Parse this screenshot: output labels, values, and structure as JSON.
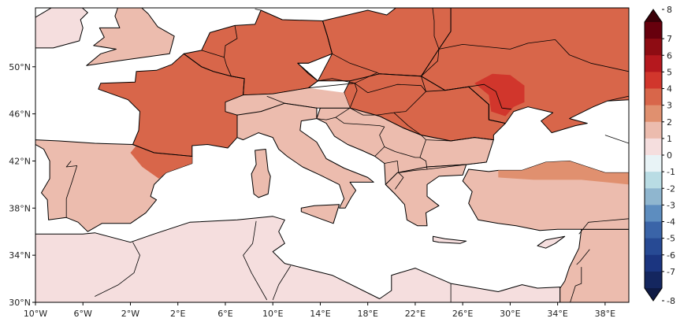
{
  "map": {
    "lon_range": [
      -10,
      40
    ],
    "lat_range": [
      30,
      55
    ],
    "x_ticks": [
      "10°W",
      "6°W",
      "2°W",
      "2°E",
      "6°E",
      "10°E",
      "14°E",
      "18°E",
      "22°E",
      "26°E",
      "30°E",
      "34°E",
      "38°E"
    ],
    "y_ticks": [
      "30°N",
      "34°N",
      "38°N",
      "42°N",
      "46°N",
      "50°N"
    ]
  },
  "colorbar": {
    "labels": [
      "8",
      "7",
      "6",
      "5",
      "4",
      "3",
      "2",
      "1",
      "0",
      "-1",
      "-2",
      "-3",
      "-4",
      "-5",
      "-6",
      "-7",
      "-8"
    ],
    "colors": [
      "#67000d",
      "#8e0c13",
      "#b5181e",
      "#d1362c",
      "#d8664a",
      "#e0906f",
      "#ecbcae",
      "#f5dede",
      "#fbf2f2",
      "#e8f3f6",
      "#b9dce4",
      "#8fb6cf",
      "#5d8dbf",
      "#3a64a8",
      "#274a94",
      "#1b3580",
      "#14265f"
    ],
    "extend_colors": {
      "top": "#3a0008",
      "bottom": "#0e1a44"
    }
  },
  "palette": {
    "sea": "#ffffff",
    "coast_stroke": "#000000",
    "border_stroke": "#000000",
    "land_base": "#f4dcdc"
  },
  "regions": [
    {
      "name": "britain",
      "value": 1.2
    },
    {
      "name": "ireland",
      "value": 1.0
    },
    {
      "name": "france",
      "value": 3.3
    },
    {
      "name": "iberia",
      "value": 1.2
    },
    {
      "name": "ne-spain",
      "value": 3.2
    },
    {
      "name": "germany-benelux",
      "value": 3.4
    },
    {
      "name": "poland-baltic",
      "value": 3.6
    },
    {
      "name": "ukraine-russia",
      "value": 3.8
    },
    {
      "name": "central-ukraine",
      "value": 4.5
    },
    {
      "name": "hungary-romania",
      "value": 3.1
    },
    {
      "name": "alps",
      "value": 1.5
    },
    {
      "name": "italy",
      "value": 1.3
    },
    {
      "name": "balkans",
      "value": 1.4
    },
    {
      "name": "greece",
      "value": 1.1
    },
    {
      "name": "turkey",
      "value": 1.4
    },
    {
      "name": "north-turkey",
      "value": 2.6
    },
    {
      "name": "north-africa",
      "value": 1.0
    },
    {
      "name": "levant",
      "value": 1.2
    },
    {
      "name": "corsica-sardinia",
      "value": 1.2
    },
    {
      "name": "sicily",
      "value": 1.2
    },
    {
      "name": "crete",
      "value": 1.0
    },
    {
      "name": "cyprus",
      "value": 1.0
    }
  ]
}
